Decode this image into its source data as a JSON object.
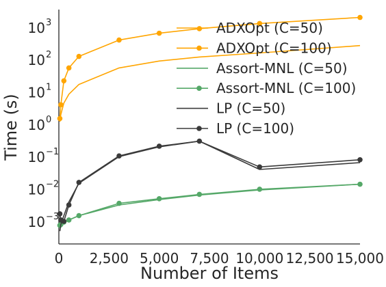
{
  "chart_data": {
    "type": "line",
    "xlabel": "Number of Items",
    "ylabel": "Time (s)",
    "xlim": [
      0,
      15000
    ],
    "ylim": [
      0.0002,
      3500
    ],
    "yscale": "log",
    "grid": false,
    "legend_position": "top-right",
    "x_ticks": [
      0,
      2500,
      5000,
      7500,
      10000,
      12500,
      15000
    ],
    "x_tick_labels": [
      "0",
      "2,500",
      "5,000",
      "7,500",
      "10,000",
      "12,500",
      "15,000"
    ],
    "y_ticks": [
      0.001,
      0.01,
      0.1,
      1,
      10,
      100,
      1000
    ],
    "y_tick_labels": [
      {
        "base": "10",
        "exp": "−3"
      },
      {
        "base": "10",
        "exp": "−2"
      },
      {
        "base": "10",
        "exp": "−1"
      },
      {
        "base": "10",
        "exp": "0"
      },
      {
        "base": "10",
        "exp": "1"
      },
      {
        "base": "10",
        "exp": "2"
      },
      {
        "base": "10",
        "exp": "3"
      }
    ],
    "series": [
      {
        "name": "ADXOpt (C=50)",
        "color": "#FFA500",
        "marker": false,
        "x": [
          50,
          100,
          250,
          500,
          1000,
          3000,
          5000,
          7000,
          10000,
          15000
        ],
        "y": [
          1.2,
          2.0,
          4.5,
          8.5,
          17,
          55,
          90,
          120,
          160,
          270
        ]
      },
      {
        "name": "ADXOpt (C=100)",
        "color": "#FFA500",
        "marker": true,
        "x": [
          50,
          100,
          250,
          500,
          1000,
          3000,
          5000,
          7000,
          10000,
          15000
        ],
        "y": [
          1.5,
          4.0,
          22,
          55,
          125,
          400,
          650,
          900,
          1300,
          2000
        ]
      },
      {
        "name": "Assort-MNL (C=50)",
        "color": "#55A868",
        "marker": false,
        "x": [
          50,
          100,
          250,
          500,
          1000,
          3000,
          5000,
          7000,
          10000,
          15000
        ],
        "y": [
          0.0007,
          0.00075,
          0.0009,
          0.0011,
          0.0015,
          0.0032,
          0.0047,
          0.0065,
          0.0093,
          0.014
        ]
      },
      {
        "name": "Assort-MNL (C=100)",
        "color": "#55A868",
        "marker": true,
        "x": [
          50,
          100,
          250,
          500,
          1000,
          3000,
          5000,
          7000,
          10000,
          15000
        ],
        "y": [
          0.00075,
          0.0008,
          0.00095,
          0.0011,
          0.0015,
          0.0036,
          0.005,
          0.0068,
          0.0098,
          0.014
        ]
      },
      {
        "name": "LP (C=50)",
        "color": "#3A3A3A",
        "marker": false,
        "x": [
          50,
          100,
          250,
          500,
          1000,
          3000,
          5000,
          7000,
          10000,
          15000
        ],
        "y": [
          0.0005,
          0.0008,
          0.0015,
          0.004,
          0.015,
          0.1,
          0.2,
          0.3,
          0.04,
          0.065
        ]
      },
      {
        "name": "LP (C=100)",
        "color": "#3A3A3A",
        "marker": true,
        "x": [
          50,
          100,
          250,
          500,
          1000,
          3000,
          5000,
          7000,
          10000,
          15000
        ],
        "y": [
          0.0017,
          0.0011,
          0.001,
          0.0032,
          0.016,
          0.105,
          0.21,
          0.3,
          0.048,
          0.08
        ]
      }
    ]
  }
}
